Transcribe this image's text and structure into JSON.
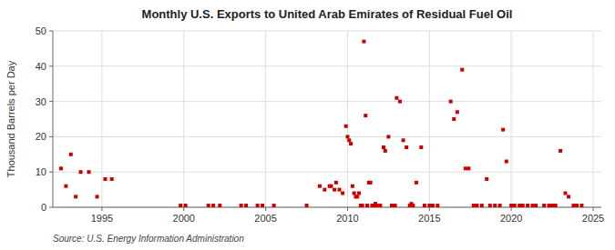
{
  "chart_data": {
    "type": "scatter",
    "title": "Monthly U.S. Exports to United Arab Emirates of Residual Fuel Oil",
    "ylabel": "Thousand Barrels per Day",
    "source": "Source: U.S. Energy Information Administration",
    "color": "#cc0000",
    "marker": "square",
    "grid": true,
    "xlim": [
      1992.0,
      2025.5
    ],
    "ylim": [
      0,
      50
    ],
    "xticks": [
      1995,
      2000,
      2005,
      2010,
      2015,
      2020,
      2025
    ],
    "yticks": [
      0,
      10,
      20,
      30,
      40,
      50
    ],
    "x": [
      1992.5,
      1992.8,
      1993.1,
      1993.4,
      1993.7,
      1994.2,
      1994.7,
      1995.2,
      1995.6,
      1999.8,
      2000.1,
      2001.5,
      2001.8,
      2002.2,
      2003.5,
      2003.8,
      2004.5,
      2004.8,
      2005.5,
      2007.5,
      2008.3,
      2008.6,
      2008.9,
      2009.0,
      2009.2,
      2009.3,
      2009.5,
      2009.7,
      2009.9,
      2010.0,
      2010.1,
      2010.2,
      2010.3,
      2010.4,
      2010.5,
      2010.6,
      2010.7,
      2010.8,
      2010.9,
      2011.0,
      2011.1,
      2011.2,
      2011.3,
      2011.4,
      2011.5,
      2011.6,
      2011.7,
      2011.8,
      2012.0,
      2012.2,
      2012.3,
      2012.5,
      2012.7,
      2012.9,
      2013.0,
      2013.2,
      2013.4,
      2013.6,
      2013.8,
      2013.9,
      2014.0,
      2014.2,
      2014.5,
      2014.7,
      2015.0,
      2015.2,
      2015.5,
      2016.3,
      2016.5,
      2016.7,
      2017.0,
      2017.2,
      2017.4,
      2017.7,
      2017.9,
      2018.2,
      2018.5,
      2018.7,
      2019.0,
      2019.3,
      2019.5,
      2019.7,
      2020.0,
      2020.2,
      2020.5,
      2020.7,
      2021.0,
      2021.3,
      2021.5,
      2022.0,
      2022.3,
      2022.5,
      2022.7,
      2023.0,
      2023.3,
      2023.5,
      2023.8,
      2024.0,
      2024.3
    ],
    "values": [
      11,
      6,
      15,
      3,
      10,
      10,
      3,
      8,
      8,
      0.5,
      0.5,
      0.5,
      0.5,
      0.5,
      0.5,
      0.5,
      0.5,
      0.5,
      0.5,
      0.5,
      6,
      5,
      6,
      6,
      5,
      7,
      5,
      4,
      23,
      20,
      19,
      18,
      6,
      4,
      3,
      3,
      4,
      0.5,
      0.5,
      47,
      26,
      0.5,
      7,
      7,
      0.5,
      0.5,
      1,
      0.5,
      0.5,
      17,
      16,
      20,
      0.5,
      0.5,
      31,
      30,
      19,
      17,
      0.5,
      1,
      0.5,
      7,
      17,
      0.5,
      0.5,
      0.5,
      0.5,
      30,
      25,
      27,
      39,
      11,
      11,
      0.5,
      0.5,
      0.5,
      8,
      0.5,
      0.5,
      0.5,
      22,
      13,
      0.5,
      0.5,
      0.5,
      0.5,
      0.5,
      0.5,
      0.5,
      0.5,
      0.5,
      0.5,
      0.5,
      16,
      4,
      3,
      0.5,
      0.5,
      0.5
    ]
  }
}
